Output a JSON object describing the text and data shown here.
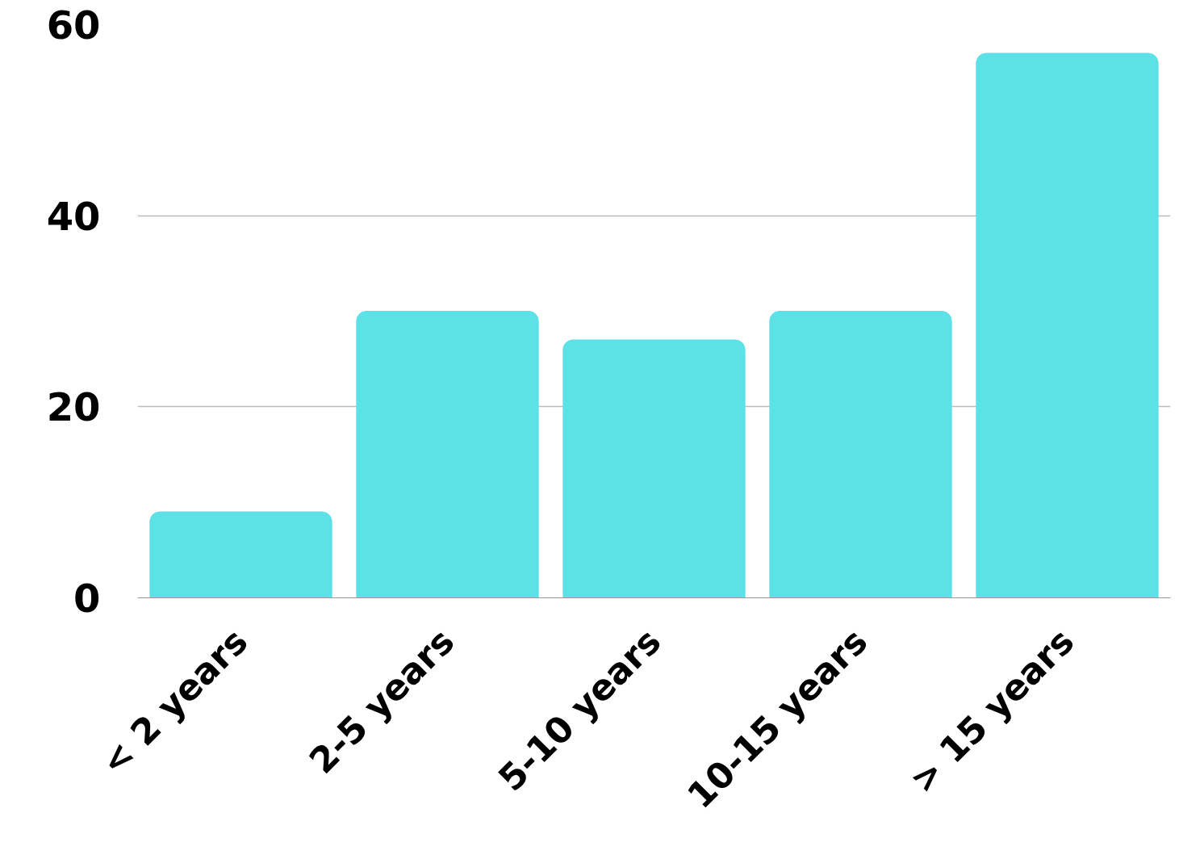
{
  "chart_data": {
    "type": "bar",
    "categories": [
      "< 2 years",
      "2-5 years",
      "5-10 years",
      "10-15 years",
      "> 15 years"
    ],
    "values": [
      9,
      30,
      27,
      30,
      57
    ],
    "color": "#5ce1e6",
    "ylim": [
      0,
      60
    ],
    "yticks": [
      0,
      20,
      40,
      60
    ],
    "grid": "y"
  }
}
